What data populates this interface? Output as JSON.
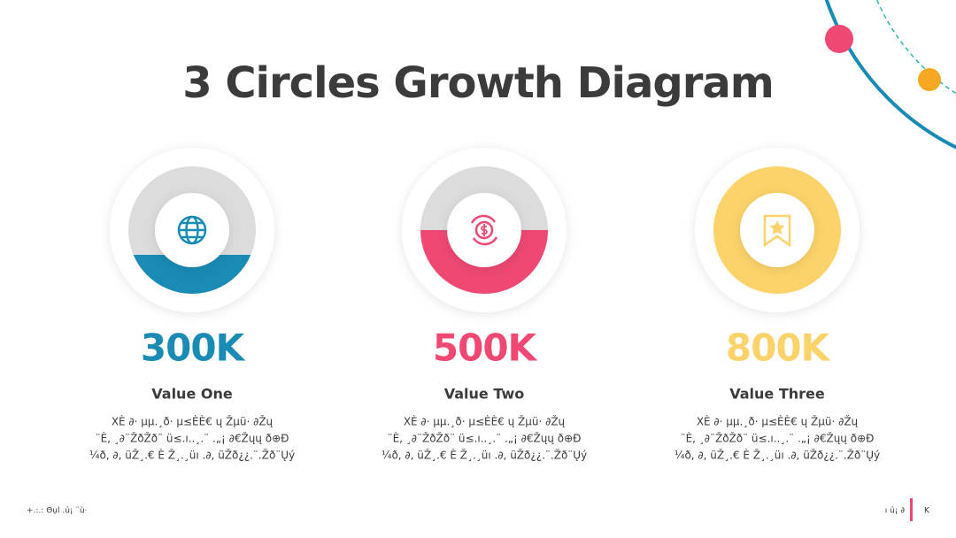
{
  "header": {
    "title": "3 Circles Growth Diagram"
  },
  "items": [
    {
      "value": "300K",
      "label": "Value One",
      "description": [
        "XÈ ∂· µµ.¸ð· µ≤ÈÈ€ ų Žµü· ∂Žų",
        "¨È, ¸∂¨ŽðŽð¨ ü≤.ı..¸.¨ .„¡ ∂€Žųų ð⊕Ð",
        "¼ð, ∂, üŽ¸.€ È Ž¸.¸üı .∂, üŽð¿¿.¨.Žð¨Ųý"
      ]
    },
    {
      "value": "500K",
      "label": "Value Two",
      "description": [
        "XÈ ∂· µµ.¸ð· µ≤ÈÈ€ ų Žµü· ∂Žų",
        "¨È, ¸∂¨ŽðŽð¨ ü≤.ı..¸.¨ .„¡ ∂€Žųų ð⊕Ð",
        "¼ð, ∂, üŽ¸.€ È Ž¸.¸üı .∂, üŽð¿¿.¨.Žð¨Ųý"
      ]
    },
    {
      "value": "800K",
      "label": "Value Three",
      "description": [
        "XÈ ∂· µµ.¸ð· µ≤ÈÈ€ ų Žµü· ∂Žų",
        "¨È, ¸∂¨ŽðŽð¨ ü≤.ı..¸.¨ .„¡ ∂€Žųų ð⊕Ð",
        "¼ð, ∂, üŽ¸.€ È Ž¸.¸üı .∂, üŽð¿¿.¨.Žð¨Ųý"
      ]
    }
  ],
  "footer": {
    "left": "+.:.: Θụl .ủ¡ ¨ù·",
    "right": "ı ủ¡ ∂",
    "page": "K"
  }
}
